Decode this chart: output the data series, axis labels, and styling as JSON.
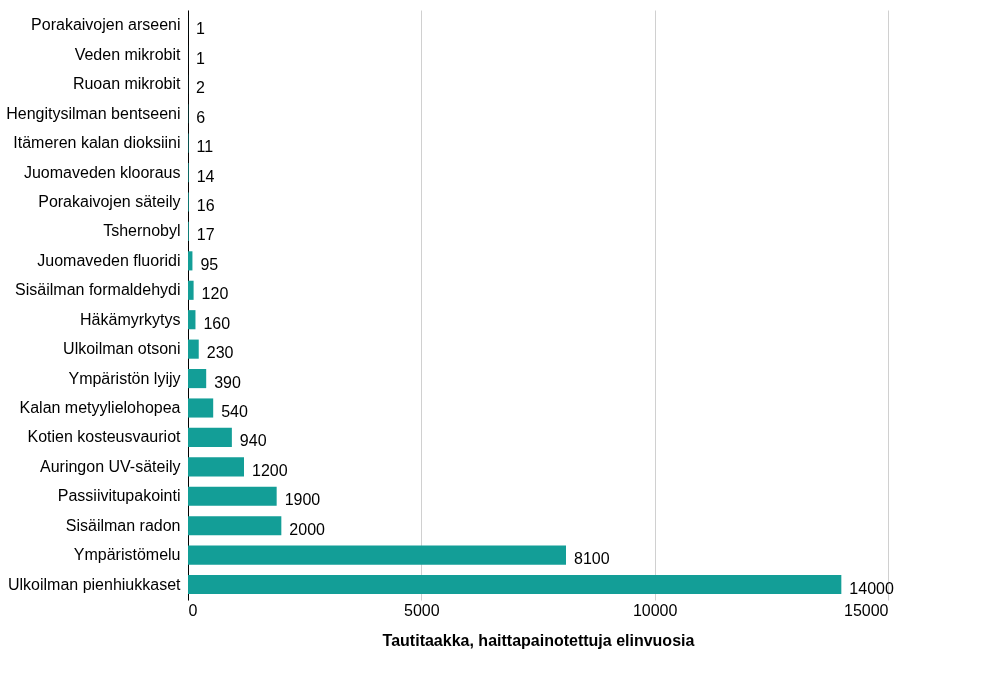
{
  "chart_data": {
    "type": "bar",
    "orientation": "horizontal",
    "xlabel": "Tautitaakka, haittapainotettuja elinvuosia",
    "categories": [
      "Porakaivojen arseeni",
      "Veden mikrobit",
      "Ruoan mikrobit",
      "Hengitysilman bentseeni",
      "Itämeren kalan dioksiini",
      "Juomaveden klooraus",
      "Porakaivojen säteily",
      "Tshernobyl",
      "Juomaveden fluoridi",
      "Sisäilman formaldehydi",
      "Häkämyrkytys",
      "Ulkoilman otsoni",
      "Ympäristön lyijy",
      "Kalan metyylielohopea",
      "Kotien kosteusvauriot",
      "Auringon UV-säteily",
      "Passiivitupakointi",
      "Sisäilman radon",
      "Ympäristömelu",
      "Ulkoilman pienhiukkaset"
    ],
    "values": [
      1,
      1,
      2,
      6,
      11,
      14,
      16,
      17,
      95,
      120,
      160,
      230,
      390,
      540,
      940,
      1200,
      1900,
      2000,
      8100,
      14000
    ],
    "color": "#139e97",
    "xlim": [
      0,
      15000
    ],
    "xticks": [
      0,
      5000,
      10000,
      15000
    ],
    "grid": "x",
    "data_labels": true
  }
}
